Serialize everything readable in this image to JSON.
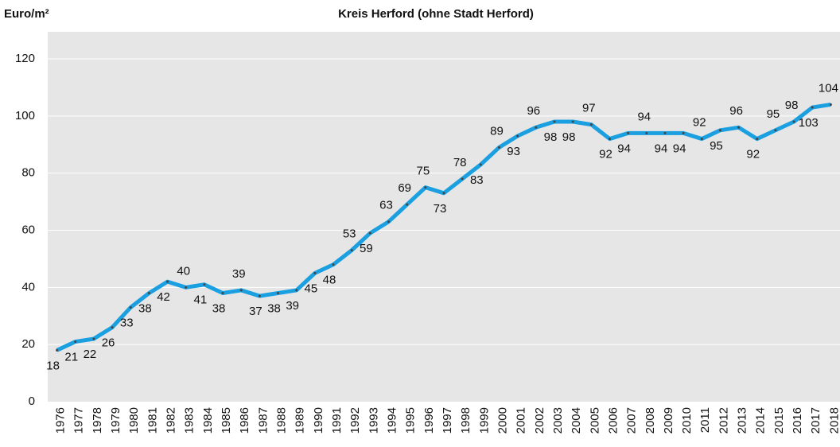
{
  "chart_data": {
    "type": "line",
    "title": "Kreis Herford (ohne Stadt Herford)",
    "y_label": "Euro/m²",
    "categories": [
      "1976",
      "1977",
      "1978",
      "1979",
      "1980",
      "1981",
      "1982",
      "1983",
      "1984",
      "1985",
      "1986",
      "1987",
      "1988",
      "1989",
      "1990",
      "1991",
      "1992",
      "1993",
      "1994",
      "1995",
      "1996",
      "1997",
      "1998",
      "1999",
      "2000",
      "2001",
      "2002",
      "2003",
      "2004",
      "2005",
      "2006",
      "2007",
      "2008",
      "2009",
      "2010",
      "2011",
      "2012",
      "2013",
      "2014",
      "2015",
      "2016",
      "2017",
      "2018"
    ],
    "values": [
      18,
      21,
      22,
      26,
      33,
      38,
      42,
      40,
      41,
      38,
      39,
      37,
      38,
      39,
      45,
      48,
      53,
      59,
      63,
      69,
      75,
      73,
      78,
      83,
      89,
      93,
      96,
      98,
      98,
      97,
      92,
      94,
      94,
      94,
      94,
      92,
      95,
      96,
      92,
      95,
      98,
      103,
      104
    ],
    "color": "#1a9fe0",
    "ylim": [
      0,
      120
    ],
    "yticks": [
      0,
      20,
      40,
      60,
      80,
      100,
      120
    ],
    "grid": true
  }
}
